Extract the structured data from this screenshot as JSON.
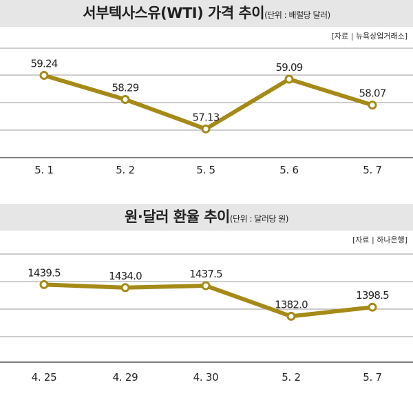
{
  "colors": {
    "line": "#a58a17",
    "marker_fill": "#ffffff",
    "grid": "#999999",
    "title_bg": "#e6e6e6"
  },
  "chart_data": [
    {
      "type": "line",
      "title": "서부텍사스유(WTI) 가격 추이",
      "unit": "(단위 : 배럴당 달러)",
      "source": "[자료 | 뉴욕상업거래소]",
      "categories": [
        "5. 1",
        "5. 2",
        "5. 5",
        "5. 6",
        "5. 7"
      ],
      "values": [
        59.24,
        58.29,
        57.13,
        59.09,
        58.07
      ],
      "value_labels": [
        "59.24",
        "58.29",
        "57.13",
        "59.09",
        "58.07"
      ],
      "ylim": [
        56,
        60.5
      ],
      "grid": true
    },
    {
      "type": "line",
      "title": "원·달러 환율 추이",
      "unit": "(단위 : 달러당 원)",
      "source": "[자료 | 하나은행]",
      "categories": [
        "4. 25",
        "4. 29",
        "4. 30",
        "5. 2",
        "5. 7"
      ],
      "values": [
        1439.5,
        1434.0,
        1437.5,
        1382.0,
        1398.5
      ],
      "value_labels": [
        "1439.5",
        "1434.0",
        "1437.5",
        "1382.0",
        "1398.5"
      ],
      "ylim": [
        1300,
        1500
      ],
      "grid": true
    }
  ]
}
